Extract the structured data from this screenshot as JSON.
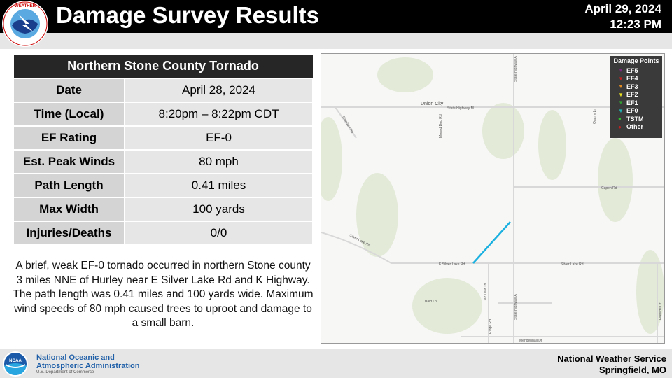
{
  "header": {
    "title": "Damage Survey Results",
    "date": "April 29, 2024",
    "time": "12:23 PM",
    "logo_text": "NATIONAL WEATHER SERVICE"
  },
  "table": {
    "title": "Northern Stone County Tornado",
    "rows": [
      {
        "label": "Date",
        "value": "April 28, 2024"
      },
      {
        "label": "Time (Local)",
        "value": "8:20pm – 8:22pm CDT"
      },
      {
        "label": "EF Rating",
        "value": "EF-0"
      },
      {
        "label": "Est. Peak Winds",
        "value": "80 mph"
      },
      {
        "label": "Path Length",
        "value": "0.41 miles"
      },
      {
        "label": "Max Width",
        "value": "100 yards"
      },
      {
        "label": "Injuries/Deaths",
        "value": "0/0"
      }
    ]
  },
  "description": "A brief, weak EF-0 tornado occurred in northern Stone county 3 miles NNE of Hurley near E Silver Lake Rd and K Highway. The path length was 0.41 miles and 100 yards wide. Maximum wind speeds of 80 mph caused trees to uproot and damage to a small barn.",
  "map": {
    "labels": {
      "town": "Union City",
      "hwy_m": "State Highway M",
      "hwy_a": "State Highway A",
      "hwy_a2": "State Highway A",
      "capen": "Capen Rd",
      "silver_w": "Silver Lake Rd",
      "e_silver": "E Silver Lake Rd",
      "silver_e": "Silver Lake Rd",
      "bald": "Bald Ln",
      "oak": "Oak Leaf Trl",
      "ridge": "Ridge Rd",
      "mound": "Mound Dog Rd",
      "rainbow": "Rainbow Rd",
      "quarry": "Quarry Ln",
      "mendenhall": "Mendenhall Dr",
      "fireside": "Fireside Dr"
    },
    "track_color": "#1ab0e0"
  },
  "legend": {
    "title": "Damage Points",
    "items": [
      {
        "label": "EF5",
        "color": "#7a2a7a",
        "shape": "triangle"
      },
      {
        "label": "EF4",
        "color": "#c02020",
        "shape": "triangle"
      },
      {
        "label": "EF3",
        "color": "#e08a20",
        "shape": "triangle"
      },
      {
        "label": "EF2",
        "color": "#e8e020",
        "shape": "triangle"
      },
      {
        "label": "EF1",
        "color": "#30a030",
        "shape": "triangle"
      },
      {
        "label": "EF0",
        "color": "#20b0b0",
        "shape": "triangle"
      },
      {
        "label": "TSTM",
        "color": "#30c030",
        "shape": "circle"
      },
      {
        "label": "Other",
        "color": "#c02020",
        "shape": "circle"
      }
    ]
  },
  "footer": {
    "noaa_logo": "NOAA",
    "org_line1": "National Oceanic and",
    "org_line2": "Atmospheric Administration",
    "dept": "U.S. Department of Commerce",
    "office_line1": "National Weather Service",
    "office_line2": "Springfield, MO"
  }
}
